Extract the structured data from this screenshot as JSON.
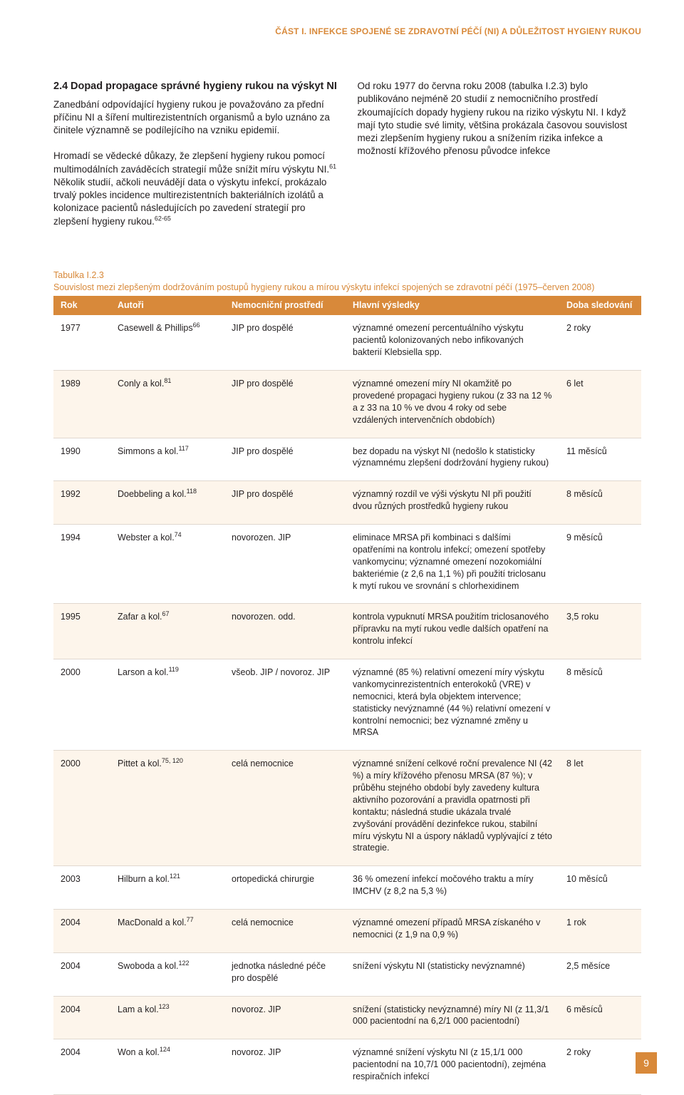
{
  "header": "ČÁST I.  INFEKCE SPOJENÉ SE ZDRAVOTNÍ PÉČÍ (NI) A DŮLEŽITOST HYGIENY RUKOU",
  "section": {
    "num": "2.4",
    "title": "Dopad propagace správné hygieny rukou na výskyt NI",
    "left_p1": "Zanedbání odpovídající hygieny rukou je považováno za přední příčinu NI a šíření multirezistentních organismů a bylo uznáno za činitele významně se podílejícího na vzniku epidemií.",
    "left_p2_pre": "Hromadí se vědecké důkazy, že zlepšení hygieny rukou pomocí multimodálních zaváděcích strategií může snížit míru výskytu NI.",
    "left_p2_sup1": "61",
    "left_p2_post": " Několik studií, ačkoli neuvádějí data o výskytu infekcí, prokázalo trvalý pokles incidence multirezistentních bakteriálních izolátů a kolonizace pacientů následujících po zavedení strategií pro zlepšení hygieny rukou.",
    "left_p2_sup2": "62-65",
    "right_p1": "Od roku 1977 do června roku 2008 (tabulka I.2.3) bylo publikováno nejméně 20 studií z nemocničního prostředí zkoumajících dopady hygieny rukou na riziko výskytu NI. I když mají tyto studie své limity, většina prokázala časovou souvislost mezi zlepšením hygieny rukou a snížením rizika infekce a možností křížového přenosu původce infekce"
  },
  "table_caption": {
    "num": "Tabulka I.2.3",
    "txt": "Souvislost mezi zlepšeným dodržováním postupů hygieny rukou a mírou výskytu infekcí spojených se zdravotní péčí (1975–červen 2008)"
  },
  "columns": [
    "Rok",
    "Autoři",
    "Nemocniční prostředí",
    "Hlavní výsledky",
    "Doba sledování"
  ],
  "rows": [
    {
      "year": "1977",
      "auth": "Casewell & Phillips",
      "auth_sup": "66",
      "env": "JIP pro dospělé",
      "find": "významné omezení percentuálního výskytu pacientů kolonizovaných nebo infikovaných bakterií Klebsiella spp.",
      "dur": "2 roky"
    },
    {
      "year": "1989",
      "auth": "Conly a kol.",
      "auth_sup": "81",
      "env": "JIP pro dospělé",
      "find": "významné omezení míry NI okamžitě po provedené propagaci hygieny rukou (z 33 na 12 % a z 33 na 10 % ve dvou 4 roky od sebe vzdálených intervenčních obdobích)",
      "dur": "6 let"
    },
    {
      "year": "1990",
      "auth": "Simmons a kol.",
      "auth_sup": "117",
      "env": "JIP pro dospělé",
      "find": "bez dopadu na výskyt NI (nedošlo k statisticky významnému zlepšení dodržování hygieny rukou)",
      "dur": "11 měsíců"
    },
    {
      "year": "1992",
      "auth": "Doebbeling a kol.",
      "auth_sup": "118",
      "env": "JIP pro dospělé",
      "find": "významný rozdíl ve výši výskytu NI při použití dvou různých prostředků hygieny rukou",
      "dur": "8 měsíců"
    },
    {
      "year": "1994",
      "auth": "Webster a kol.",
      "auth_sup": "74",
      "env": "novorozen. JIP",
      "find": "eliminace MRSA při kombinaci s dalšími opatřeními na kontrolu infekcí; omezení spotřeby vankomycinu; významné omezení nozokomiální bakteriémie (z 2,6 na 1,1 %) při použití triclosanu k mytí rukou ve srovnání s chlorhexidinem",
      "dur": "9 měsíců"
    },
    {
      "year": "1995",
      "auth": "Zafar a kol.",
      "auth_sup": "67",
      "env": "novorozen. odd.",
      "find": "kontrola vypuknutí MRSA použitím triclosanového přípravku na mytí rukou vedle dalších opatření na kontrolu infekcí",
      "dur": "3,5 roku"
    },
    {
      "year": "2000",
      "auth": "Larson a kol.",
      "auth_sup": "119",
      "env": "všeob. JIP / novoroz. JIP",
      "find": "významné (85 %) relativní omezení míry výskytu vankomycinrezistentních enterokoků (VRE) v nemocnici, která byla objektem intervence; statisticky nevýznamné (44 %) relativní omezení v kontrolní nemocnici; bez významné změny u MRSA",
      "dur": "8 měsíců"
    },
    {
      "year": "2000",
      "auth": "Pittet a kol.",
      "auth_sup": "75, 120",
      "env": "celá nemocnice",
      "find": "významné snížení celkové roční prevalence NI (42 %) a míry křížového přenosu MRSA (87 %); v průběhu stejného období byly zavedeny kultura aktivního pozorování a pravidla opatrnosti při kontaktu; následná studie ukázala trvalé zvyšování provádění dezinfekce rukou, stabilní míru výskytu NI a úspory nákladů vyplývající z této strategie.",
      "dur": "8 let"
    },
    {
      "year": "2003",
      "auth": "Hilburn a kol.",
      "auth_sup": "121",
      "env": "ortopedická chirurgie",
      "find": "36 % omezení infekcí močového traktu a míry IMCHV (z 8,2 na 5,3 %)",
      "dur": "10 měsíců"
    },
    {
      "year": "2004",
      "auth": "MacDonald a kol.",
      "auth_sup": "77",
      "env": "celá nemocnice",
      "find": "významné omezení případů MRSA získaného v nemocnici (z 1,9 na 0,9 %)",
      "dur": "1 rok"
    },
    {
      "year": "2004",
      "auth": "Swoboda a kol.",
      "auth_sup": "122",
      "env": "jednotka následné péče pro dospělé",
      "find": "snížení výskytu NI (statisticky nevýznamné)",
      "dur": "2,5 měsíce"
    },
    {
      "year": "2004",
      "auth": "Lam a kol.",
      "auth_sup": "123",
      "env": "novoroz. JIP",
      "find": "snížení (statisticky nevýznamné) míry NI (z 11,3/1 000 pacientodní na 6,2/1 000 pacientodní)",
      "dur": "6 měsíců"
    },
    {
      "year": "2004",
      "auth": "Won a kol.",
      "auth_sup": "124",
      "env": "novoroz. JIP",
      "find": "významné snížení výskytu NI (z 15,1/1 000 pacientodní na 10,7/1 000 pacientodní), zejména respiračních infekcí",
      "dur": "2 roky"
    }
  ],
  "page_number": "9"
}
